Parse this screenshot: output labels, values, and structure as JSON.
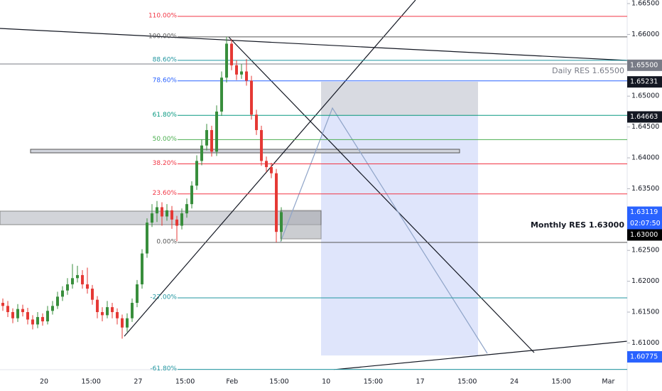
{
  "chart_data": {
    "type": "candlestick",
    "up_color": "#388e3c",
    "down_color": "#e53935",
    "open": [
      1.6165,
      1.616,
      1.615,
      1.614,
      1.6155,
      1.615,
      1.6138,
      1.613,
      1.6142,
      1.6135,
      1.6152,
      1.616,
      1.6175,
      1.6185,
      1.6195,
      1.6205,
      1.621,
      1.6195,
      1.6188,
      1.617,
      1.615,
      1.6145,
      1.6158,
      1.615,
      1.614,
      1.6125,
      1.614,
      1.6165,
      1.6195,
      1.6245,
      1.6295,
      1.631,
      1.632,
      1.6305,
      1.6315,
      1.63,
      1.629,
      1.631,
      1.6325,
      1.6355,
      1.6395,
      1.642,
      1.6445,
      1.641,
      1.6475,
      1.653,
      1.6585,
      1.655,
      1.6535,
      1.654,
      1.6525,
      1.647,
      1.6445,
      1.6395,
      1.6385,
      1.6375,
      1.628
    ],
    "high": [
      1.6172,
      1.6168,
      1.6156,
      1.6163,
      1.6162,
      1.6157,
      1.6145,
      1.615,
      1.6148,
      1.616,
      1.6168,
      1.6183,
      1.6192,
      1.6205,
      1.6228,
      1.6225,
      1.6218,
      1.6222,
      1.6194,
      1.6176,
      1.6158,
      1.6168,
      1.6165,
      1.6156,
      1.6146,
      1.6148,
      1.6172,
      1.6202,
      1.6252,
      1.6302,
      1.6325,
      1.633,
      1.6328,
      1.6325,
      1.6322,
      1.6306,
      1.6318,
      1.6334,
      1.6362,
      1.6404,
      1.643,
      1.6455,
      1.6452,
      1.6485,
      1.654,
      1.6596,
      1.6592,
      1.6558,
      1.6552,
      1.656,
      1.6533,
      1.6478,
      1.6452,
      1.6402,
      1.6392,
      1.6382,
      1.632
    ],
    "low": [
      1.6152,
      1.6142,
      1.6132,
      1.6134,
      1.6143,
      1.613,
      1.6122,
      1.6124,
      1.6128,
      1.613,
      1.6146,
      1.6155,
      1.6168,
      1.6178,
      1.6188,
      1.6198,
      1.6188,
      1.618,
      1.6162,
      1.614,
      1.6135,
      1.614,
      1.614,
      1.613,
      1.6107,
      1.6118,
      1.6134,
      1.6158,
      1.6188,
      1.6238,
      1.6288,
      1.6296,
      1.629,
      1.6298,
      1.6285,
      1.6265,
      1.6284,
      1.6303,
      1.6318,
      1.6348,
      1.6388,
      1.6412,
      1.6402,
      1.6403,
      1.6468,
      1.6522,
      1.6542,
      1.6526,
      1.6528,
      1.6517,
      1.6462,
      1.6437,
      1.6387,
      1.6377,
      1.6367,
      1.6263,
      1.6265
    ],
    "close": [
      1.616,
      1.615,
      1.614,
      1.6155,
      1.615,
      1.6138,
      1.613,
      1.6142,
      1.6135,
      1.6152,
      1.616,
      1.6175,
      1.6185,
      1.6195,
      1.6205,
      1.621,
      1.6195,
      1.6188,
      1.617,
      1.615,
      1.6145,
      1.6158,
      1.615,
      1.614,
      1.6125,
      1.614,
      1.6165,
      1.6195,
      1.6245,
      1.6295,
      1.631,
      1.632,
      1.6305,
      1.6315,
      1.63,
      1.629,
      1.631,
      1.6325,
      1.6355,
      1.6395,
      1.642,
      1.6445,
      1.641,
      1.6475,
      1.653,
      1.6585,
      1.655,
      1.6535,
      1.654,
      1.6525,
      1.647,
      1.6445,
      1.6395,
      1.6385,
      1.6375,
      1.628,
      1.6312
    ],
    "ylim": [
      1.60567,
      1.66558
    ],
    "yticks": [
      {
        "value": 1.665,
        "label": "1.66500"
      },
      {
        "value": 1.66,
        "label": "1.66000"
      },
      {
        "value": 1.655,
        "label": "1.65500"
      },
      {
        "value": 1.65,
        "label": "1.65000"
      },
      {
        "value": 1.645,
        "label": "1.64500"
      },
      {
        "value": 1.64,
        "label": "1.64000"
      },
      {
        "value": 1.635,
        "label": "1.63500"
      },
      {
        "value": 1.63,
        "label": "1.63000"
      },
      {
        "value": 1.625,
        "label": "1.62500"
      },
      {
        "value": 1.62,
        "label": "1.62000"
      },
      {
        "value": 1.615,
        "label": "1.61500"
      },
      {
        "value": 1.61,
        "label": "1.61000"
      }
    ],
    "x_labels": [
      "20",
      "15:00",
      "27",
      "15:00",
      "Feb",
      "15:00",
      "10",
      "15:00",
      "17",
      "15:00",
      "24",
      "15:00",
      "Mar"
    ],
    "fib_levels": [
      {
        "label": "110.00%",
        "price": 1.66293,
        "color": "#f23645"
      },
      {
        "label": "100.00%",
        "price": 1.6596,
        "color": "#555555"
      },
      {
        "label": "88.60%",
        "price": 1.6558,
        "color": "#2196a0"
      },
      {
        "label": "78.60%",
        "price": 1.65247,
        "color": "#2962ff"
      },
      {
        "label": "61.80%",
        "price": 1.64688,
        "color": "#089981"
      },
      {
        "label": "50.00%",
        "price": 1.64295,
        "color": "#4caf50"
      },
      {
        "label": "38.20%",
        "price": 1.63902,
        "color": "#f23645"
      },
      {
        "label": "23.60%",
        "price": 1.63416,
        "color": "#f23645"
      },
      {
        "label": "0.00%",
        "price": 1.6263,
        "color": "#555555"
      },
      {
        "label": "-27.00%",
        "price": 1.61731,
        "color": "#2196a0"
      },
      {
        "label": "-61.80%",
        "price": 1.60572,
        "color": "#2196a0"
      }
    ],
    "price_labels": [
      {
        "value": 1.655,
        "label": "1.65500",
        "bg": "#787b86"
      },
      {
        "value": 1.65231,
        "label": "1.65231",
        "bg": "#131722"
      },
      {
        "value": 1.64663,
        "label": "1.64663",
        "bg": "#131722"
      },
      {
        "value": 1.63119,
        "label": "1.63119",
        "bg": "#2962ff",
        "sublabel": "02:07:50"
      },
      {
        "value": 1.63,
        "label": "1.63000",
        "bg": "#000000"
      },
      {
        "value": 1.60775,
        "label": "1.60775",
        "bg": "#2962ff"
      }
    ],
    "annotations": [
      "Daily RES 1.65500",
      "Monthly RES 1.63000"
    ]
  }
}
